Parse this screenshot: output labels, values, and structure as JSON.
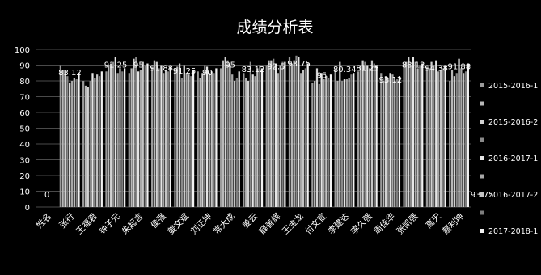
{
  "chart_data": {
    "type": "bar",
    "title": "成绩分析表",
    "xlabel": "",
    "ylabel": "",
    "ylim": [
      0,
      100
    ],
    "yticks": [
      0,
      10,
      20,
      30,
      40,
      50,
      60,
      70,
      80,
      90,
      100
    ],
    "grid": true,
    "legend_position": "right",
    "categories": [
      "姓名",
      "张行",
      "王福君",
      "钟子元",
      "朱起言",
      "侯强",
      "姜文斌",
      "刘正坤",
      "常大成",
      "姜云",
      "薛善辉",
      "王金龙",
      "付文宣",
      "李建达",
      "李久强",
      "周佳华",
      "张凯强",
      "高天",
      "蔡利坤"
    ],
    "series": [
      {
        "name": "2015-2016-1",
        "values": [
          0,
          90,
          80,
          86,
          85,
          89,
          88,
          86,
          88,
          85,
          90,
          95,
          79,
          87,
          86,
          85,
          91,
          89,
          80
        ]
      },
      {
        "name": "",
        "values": [
          0,
          87,
          77,
          90,
          88,
          93,
          89,
          82,
          93,
          82,
          93,
          91,
          80,
          80,
          90,
          80,
          92,
          88,
          87
        ]
      },
      {
        "name": "2015-2016-2",
        "values": [
          0,
          87,
          76,
          91,
          94,
          92,
          91,
          85,
          95,
          80,
          93,
          93,
          88,
          92,
          93,
          83,
          95,
          92,
          83
        ]
      },
      {
        "name": "",
        "values": [
          0,
          83,
          80,
          92,
          95,
          88,
          82,
          90,
          93,
          92,
          94,
          96,
          78,
          80,
          92,
          82,
          89,
          90,
          85
        ]
      },
      {
        "name": "2016-2017-1",
        "values": [
          0,
          79,
          85,
          95,
          86,
          90,
          90,
          89,
          90,
          84,
          91,
          95,
          85,
          81,
          90,
          85,
          95,
          93,
          94
        ]
      },
      {
        "name": "",
        "values": [
          0,
          80,
          82,
          85,
          87,
          85,
          85,
          85,
          84,
          83,
          85,
          85,
          81,
          81,
          88,
          84,
          92,
          86,
          88
        ]
      },
      {
        "name": "2016-2017-2",
        "values": [
          0,
          82,
          84,
          88,
          92,
          87,
          84,
          86,
          80,
          88,
          90,
          87,
          83,
          82,
          93,
          80,
          88,
          87,
          85
        ]
      },
      {
        "name": "",
        "values": [
          0,
          81,
          83,
          86,
          90,
          86,
          83,
          85,
          82,
          90,
          92,
          88,
          82,
          84,
          91,
          81,
          90,
          88,
          86
        ]
      },
      {
        "name": "2017-2018-1",
        "values": [
          0,
          85,
          86,
          88,
          91,
          89,
          87,
          88,
          86,
          88,
          92,
          91,
          84,
          85,
          90,
          83,
          91,
          90,
          91
        ]
      }
    ],
    "data_labels": [
      {
        "text": "0",
        "category": 0
      },
      {
        "text": "83.12",
        "category": 1
      },
      {
        "text": "91.25",
        "category": 3
      },
      {
        "text": "95",
        "category": 4
      },
      {
        "text": "91.88",
        "category": 5
      },
      {
        "text": "91.25",
        "category": 6
      },
      {
        "text": "90",
        "category": 7
      },
      {
        "text": "95",
        "category": 8
      },
      {
        "text": "83.12",
        "category": 9
      },
      {
        "text": "92.5",
        "category": 10
      },
      {
        "text": "93.75",
        "category": 11
      },
      {
        "text": "95",
        "category": 12
      },
      {
        "text": "80.34",
        "category": 13
      },
      {
        "text": "81.25",
        "category": 14
      },
      {
        "text": "93.12",
        "category": 15
      },
      {
        "text": "83.12",
        "category": 16
      },
      {
        "text": "94.38",
        "category": 17
      },
      {
        "text": "91.88",
        "category": 18
      },
      {
        "text": "93.75",
        "category": 19
      }
    ],
    "colors": {
      "background": "#000000",
      "grid": "#4a4a4a",
      "axis_text": "#ffffff",
      "bars": [
        "#9a9a9a",
        "#b8b8b8",
        "#d2d2d2",
        "#8a8a8a",
        "#e6e6e6",
        "#a8a8a8",
        "#c4c4c4",
        "#7e7e7e",
        "#f2f2f2"
      ]
    }
  }
}
